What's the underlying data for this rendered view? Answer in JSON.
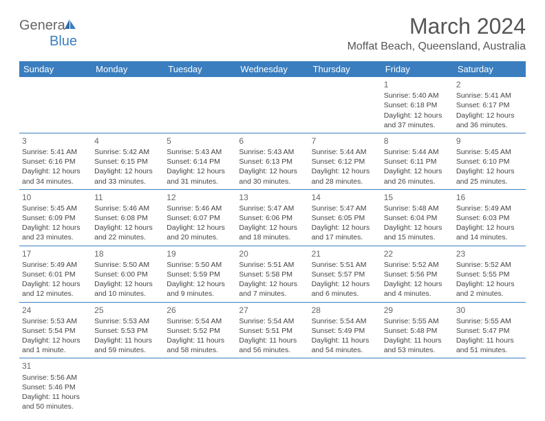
{
  "logo": {
    "general": "Genera",
    "blue": "Blue"
  },
  "title": "March 2024",
  "location": "Moffat Beach, Queensland, Australia",
  "colors": {
    "header_bg": "#3a7ebf",
    "header_fg": "#ffffff",
    "border": "#3a7ebf",
    "text": "#444444",
    "title_color": "#555555"
  },
  "weekdays": [
    "Sunday",
    "Monday",
    "Tuesday",
    "Wednesday",
    "Thursday",
    "Friday",
    "Saturday"
  ],
  "weeks": [
    [
      null,
      null,
      null,
      null,
      null,
      {
        "n": "1",
        "sr": "Sunrise: 5:40 AM",
        "ss": "Sunset: 6:18 PM",
        "d1": "Daylight: 12 hours",
        "d2": "and 37 minutes."
      },
      {
        "n": "2",
        "sr": "Sunrise: 5:41 AM",
        "ss": "Sunset: 6:17 PM",
        "d1": "Daylight: 12 hours",
        "d2": "and 36 minutes."
      }
    ],
    [
      {
        "n": "3",
        "sr": "Sunrise: 5:41 AM",
        "ss": "Sunset: 6:16 PM",
        "d1": "Daylight: 12 hours",
        "d2": "and 34 minutes."
      },
      {
        "n": "4",
        "sr": "Sunrise: 5:42 AM",
        "ss": "Sunset: 6:15 PM",
        "d1": "Daylight: 12 hours",
        "d2": "and 33 minutes."
      },
      {
        "n": "5",
        "sr": "Sunrise: 5:43 AM",
        "ss": "Sunset: 6:14 PM",
        "d1": "Daylight: 12 hours",
        "d2": "and 31 minutes."
      },
      {
        "n": "6",
        "sr": "Sunrise: 5:43 AM",
        "ss": "Sunset: 6:13 PM",
        "d1": "Daylight: 12 hours",
        "d2": "and 30 minutes."
      },
      {
        "n": "7",
        "sr": "Sunrise: 5:44 AM",
        "ss": "Sunset: 6:12 PM",
        "d1": "Daylight: 12 hours",
        "d2": "and 28 minutes."
      },
      {
        "n": "8",
        "sr": "Sunrise: 5:44 AM",
        "ss": "Sunset: 6:11 PM",
        "d1": "Daylight: 12 hours",
        "d2": "and 26 minutes."
      },
      {
        "n": "9",
        "sr": "Sunrise: 5:45 AM",
        "ss": "Sunset: 6:10 PM",
        "d1": "Daylight: 12 hours",
        "d2": "and 25 minutes."
      }
    ],
    [
      {
        "n": "10",
        "sr": "Sunrise: 5:45 AM",
        "ss": "Sunset: 6:09 PM",
        "d1": "Daylight: 12 hours",
        "d2": "and 23 minutes."
      },
      {
        "n": "11",
        "sr": "Sunrise: 5:46 AM",
        "ss": "Sunset: 6:08 PM",
        "d1": "Daylight: 12 hours",
        "d2": "and 22 minutes."
      },
      {
        "n": "12",
        "sr": "Sunrise: 5:46 AM",
        "ss": "Sunset: 6:07 PM",
        "d1": "Daylight: 12 hours",
        "d2": "and 20 minutes."
      },
      {
        "n": "13",
        "sr": "Sunrise: 5:47 AM",
        "ss": "Sunset: 6:06 PM",
        "d1": "Daylight: 12 hours",
        "d2": "and 18 minutes."
      },
      {
        "n": "14",
        "sr": "Sunrise: 5:47 AM",
        "ss": "Sunset: 6:05 PM",
        "d1": "Daylight: 12 hours",
        "d2": "and 17 minutes."
      },
      {
        "n": "15",
        "sr": "Sunrise: 5:48 AM",
        "ss": "Sunset: 6:04 PM",
        "d1": "Daylight: 12 hours",
        "d2": "and 15 minutes."
      },
      {
        "n": "16",
        "sr": "Sunrise: 5:49 AM",
        "ss": "Sunset: 6:03 PM",
        "d1": "Daylight: 12 hours",
        "d2": "and 14 minutes."
      }
    ],
    [
      {
        "n": "17",
        "sr": "Sunrise: 5:49 AM",
        "ss": "Sunset: 6:01 PM",
        "d1": "Daylight: 12 hours",
        "d2": "and 12 minutes."
      },
      {
        "n": "18",
        "sr": "Sunrise: 5:50 AM",
        "ss": "Sunset: 6:00 PM",
        "d1": "Daylight: 12 hours",
        "d2": "and 10 minutes."
      },
      {
        "n": "19",
        "sr": "Sunrise: 5:50 AM",
        "ss": "Sunset: 5:59 PM",
        "d1": "Daylight: 12 hours",
        "d2": "and 9 minutes."
      },
      {
        "n": "20",
        "sr": "Sunrise: 5:51 AM",
        "ss": "Sunset: 5:58 PM",
        "d1": "Daylight: 12 hours",
        "d2": "and 7 minutes."
      },
      {
        "n": "21",
        "sr": "Sunrise: 5:51 AM",
        "ss": "Sunset: 5:57 PM",
        "d1": "Daylight: 12 hours",
        "d2": "and 6 minutes."
      },
      {
        "n": "22",
        "sr": "Sunrise: 5:52 AM",
        "ss": "Sunset: 5:56 PM",
        "d1": "Daylight: 12 hours",
        "d2": "and 4 minutes."
      },
      {
        "n": "23",
        "sr": "Sunrise: 5:52 AM",
        "ss": "Sunset: 5:55 PM",
        "d1": "Daylight: 12 hours",
        "d2": "and 2 minutes."
      }
    ],
    [
      {
        "n": "24",
        "sr": "Sunrise: 5:53 AM",
        "ss": "Sunset: 5:54 PM",
        "d1": "Daylight: 12 hours",
        "d2": "and 1 minute."
      },
      {
        "n": "25",
        "sr": "Sunrise: 5:53 AM",
        "ss": "Sunset: 5:53 PM",
        "d1": "Daylight: 11 hours",
        "d2": "and 59 minutes."
      },
      {
        "n": "26",
        "sr": "Sunrise: 5:54 AM",
        "ss": "Sunset: 5:52 PM",
        "d1": "Daylight: 11 hours",
        "d2": "and 58 minutes."
      },
      {
        "n": "27",
        "sr": "Sunrise: 5:54 AM",
        "ss": "Sunset: 5:51 PM",
        "d1": "Daylight: 11 hours",
        "d2": "and 56 minutes."
      },
      {
        "n": "28",
        "sr": "Sunrise: 5:54 AM",
        "ss": "Sunset: 5:49 PM",
        "d1": "Daylight: 11 hours",
        "d2": "and 54 minutes."
      },
      {
        "n": "29",
        "sr": "Sunrise: 5:55 AM",
        "ss": "Sunset: 5:48 PM",
        "d1": "Daylight: 11 hours",
        "d2": "and 53 minutes."
      },
      {
        "n": "30",
        "sr": "Sunrise: 5:55 AM",
        "ss": "Sunset: 5:47 PM",
        "d1": "Daylight: 11 hours",
        "d2": "and 51 minutes."
      }
    ],
    [
      {
        "n": "31",
        "sr": "Sunrise: 5:56 AM",
        "ss": "Sunset: 5:46 PM",
        "d1": "Daylight: 11 hours",
        "d2": "and 50 minutes."
      },
      null,
      null,
      null,
      null,
      null,
      null
    ]
  ]
}
